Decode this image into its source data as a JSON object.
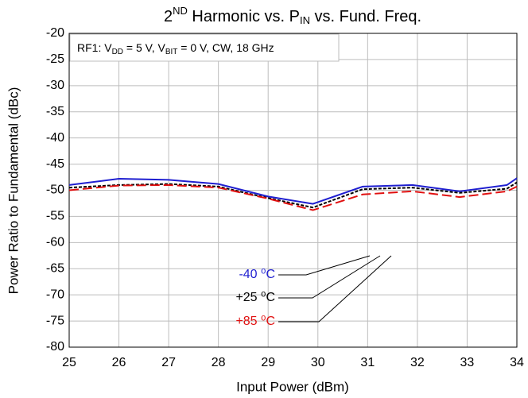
{
  "chart_data": {
    "type": "line",
    "title_parts": [
      "2",
      "ND",
      " Harmonic vs. P",
      "IN",
      " vs. Fund. Freq."
    ],
    "annotation_parts": [
      "RF1: V",
      "DD",
      " = 5 V, V",
      "BIT",
      " = 0 V, CW, 18 GHz"
    ],
    "x_label": "Input Power (dBm)",
    "y_label": "Power Ratio to Fundamental (dBc)",
    "x": [
      25,
      26,
      27,
      28,
      29,
      29.9,
      30.9,
      31.9,
      32.85,
      33.8,
      34
    ],
    "series": [
      {
        "name": "-40 ⁰C",
        "color": "#1f1fd0",
        "dash": "none",
        "values": [
          -49,
          -47.8,
          -48,
          -48.8,
          -51.2,
          -52.6,
          -49.3,
          -49,
          -50.2,
          -49,
          -47.7
        ]
      },
      {
        "name": "+25 ⁰C",
        "color": "#000000",
        "dash": "4 2",
        "values": [
          -49.5,
          -49,
          -48.8,
          -49.3,
          -51.5,
          -53.3,
          -49.8,
          -49.5,
          -50.5,
          -49.7,
          -48.5
        ]
      },
      {
        "name": "+85 ⁰C",
        "color": "#e01010",
        "dash": "12 5",
        "values": [
          -50,
          -49.1,
          -49,
          -49.5,
          -51.6,
          -53.8,
          -50.8,
          -50.2,
          -51.3,
          -50.2,
          -49.3
        ]
      }
    ],
    "xlim": [
      25,
      34
    ],
    "ylim": [
      -80,
      -20
    ],
    "xticks": [
      25,
      26,
      27,
      28,
      29,
      30,
      31,
      32,
      33,
      34
    ],
    "yticks": [
      -80,
      -75,
      -70,
      -65,
      -60,
      -55,
      -50,
      -45,
      -40,
      -35,
      -30,
      -25,
      -20
    ],
    "grid": true
  }
}
